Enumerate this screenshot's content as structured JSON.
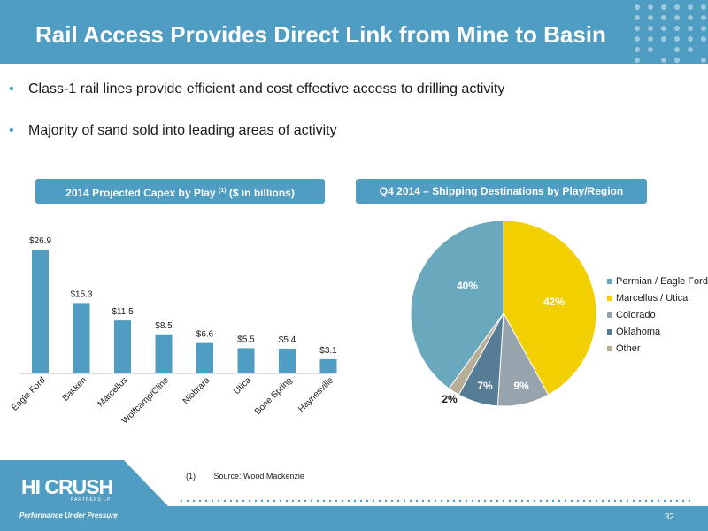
{
  "slide": {
    "title": "Rail Access Provides Direct Link from Mine to Basin",
    "bullets": [
      "Class-1 rail lines provide efficient and cost effective access to drilling activity",
      "Majority of sand sold into leading areas of activity"
    ],
    "bullet_marker": "•",
    "page_number": "32"
  },
  "panels": {
    "capex_title_a": "2014 Projected Capex by Play ",
    "capex_title_sup": "(1)",
    "capex_title_b": " ($ in billions)",
    "shipping_title": "Q4 2014 – Shipping Destinations by Play/Region"
  },
  "footnote": {
    "number": "(1)",
    "text": "Source: Wood Mackenzie"
  },
  "logo": {
    "main": "HI CRUSH",
    "sub": "PARTNERS LP",
    "tagline": "Performance Under Pressure"
  },
  "colors": {
    "accent": "#4f9dc2",
    "bar": "#4f9dc2"
  },
  "chart_data": [
    {
      "type": "bar",
      "categories": [
        "Eagle Ford",
        "Bakken",
        "Marcellus",
        "Wolfcamp/Cline",
        "Niobrara",
        "Utica",
        "Bone Spring",
        "Haynesville"
      ],
      "values": [
        26.9,
        15.3,
        11.5,
        8.5,
        6.6,
        5.5,
        5.4,
        3.1
      ],
      "data_labels": [
        "$26.9",
        "$15.3",
        "$11.5",
        "$8.5",
        "$6.6",
        "$5.5",
        "$5.4",
        "$3.1"
      ],
      "ylim": [
        0,
        26.9
      ],
      "grid": false
    },
    {
      "type": "pie",
      "labels": [
        "Permian / Eagle Ford",
        "Marcellus / Utica",
        "Colorado",
        "Oklahoma",
        "Other"
      ],
      "values": [
        40,
        42,
        9,
        7,
        2
      ],
      "data_labels": [
        "40%",
        "42%",
        "9%",
        "7%",
        "2%"
      ],
      "colors": [
        "#6aa8be",
        "#f2cf00",
        "#98a4ad",
        "#567c96",
        "#b8ad96"
      ],
      "legend": "right"
    }
  ]
}
